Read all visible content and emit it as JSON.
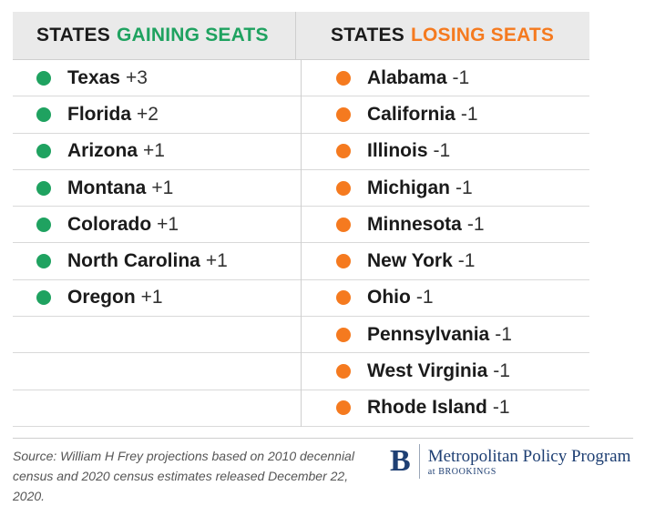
{
  "header": {
    "left_prefix": "STATES",
    "left_highlight": "GAINING SEATS",
    "right_prefix": "STATES",
    "right_highlight": "LOSING SEATS"
  },
  "colors": {
    "gain": "#1fa260",
    "lose": "#f57a1f"
  },
  "gaining": [
    {
      "state": "Texas",
      "change": "+3"
    },
    {
      "state": "Florida",
      "change": "+2"
    },
    {
      "state": "Arizona",
      "change": "+1"
    },
    {
      "state": "Montana",
      "change": "+1"
    },
    {
      "state": "Colorado",
      "change": "+1"
    },
    {
      "state": "North Carolina",
      "change": "+1"
    },
    {
      "state": "Oregon",
      "change": "+1"
    }
  ],
  "losing": [
    {
      "state": "Alabama",
      "change": "-1"
    },
    {
      "state": "California",
      "change": "-1"
    },
    {
      "state": "Illinois",
      "change": "-1"
    },
    {
      "state": "Michigan",
      "change": "-1"
    },
    {
      "state": "Minnesota",
      "change": "-1"
    },
    {
      "state": "New York",
      "change": "-1"
    },
    {
      "state": "Ohio",
      "change": "-1"
    },
    {
      "state": "Pennsylvania",
      "change": "-1"
    },
    {
      "state": "West Virginia",
      "change": "-1"
    },
    {
      "state": "Rhode Island",
      "change": "-1"
    }
  ],
  "footer": {
    "source_line1": "Source: William H Frey projections based on 2010 decennial",
    "source_line2": "census and 2020 census estimates released December 22, 2020.",
    "brand_mark": "B",
    "brand_name": "Metropolitan Policy Program",
    "brand_sub": "at BROOKINGS"
  }
}
